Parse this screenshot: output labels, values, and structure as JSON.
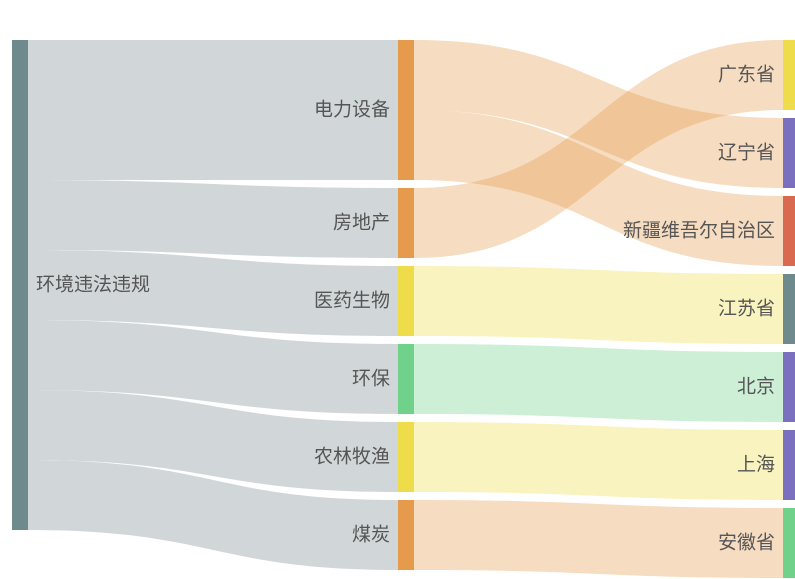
{
  "chart_data": {
    "type": "sankey",
    "title": "",
    "nodes": [
      {
        "id": "env",
        "name": "环境违法违规",
        "color": "#6e8a8d"
      },
      {
        "id": "power",
        "name": "电力设备",
        "color": "#e69a4b"
      },
      {
        "id": "realestate",
        "name": "房地产",
        "color": "#e69a4b"
      },
      {
        "id": "pharma",
        "name": "医药生物",
        "color": "#eedc4a"
      },
      {
        "id": "envprot",
        "name": "环保",
        "color": "#6fd18a"
      },
      {
        "id": "agri",
        "name": "农林牧渔",
        "color": "#eedc4a"
      },
      {
        "id": "coal",
        "name": "煤炭",
        "color": "#e69a4b"
      },
      {
        "id": "guangdong",
        "name": "广东省",
        "color": "#eedc4a"
      },
      {
        "id": "liaoning",
        "name": "辽宁省",
        "color": "#7b70bf"
      },
      {
        "id": "xinjiang",
        "name": "新疆维吾尔自治区",
        "color": "#d96a4f"
      },
      {
        "id": "jiangsu",
        "name": "江苏省",
        "color": "#6e8a8d"
      },
      {
        "id": "beijing",
        "name": "北京",
        "color": "#7b70bf"
      },
      {
        "id": "shanghai",
        "name": "上海",
        "color": "#7b70bf"
      },
      {
        "id": "anhui",
        "name": "安徽省",
        "color": "#6fd18a"
      }
    ],
    "links": [
      {
        "source": "env",
        "target": "power",
        "value": 2
      },
      {
        "source": "env",
        "target": "realestate",
        "value": 1
      },
      {
        "source": "env",
        "target": "pharma",
        "value": 1
      },
      {
        "source": "env",
        "target": "envprot",
        "value": 1
      },
      {
        "source": "env",
        "target": "agri",
        "value": 1
      },
      {
        "source": "env",
        "target": "coal",
        "value": 1
      },
      {
        "source": "power",
        "target": "liaoning",
        "value": 1
      },
      {
        "source": "power",
        "target": "xinjiang",
        "value": 1
      },
      {
        "source": "realestate",
        "target": "guangdong",
        "value": 1
      },
      {
        "source": "pharma",
        "target": "jiangsu",
        "value": 1
      },
      {
        "source": "envprot",
        "target": "beijing",
        "value": 1
      },
      {
        "source": "agri",
        "target": "shanghai",
        "value": 1
      },
      {
        "source": "coal",
        "target": "anhui",
        "value": 1
      }
    ]
  }
}
